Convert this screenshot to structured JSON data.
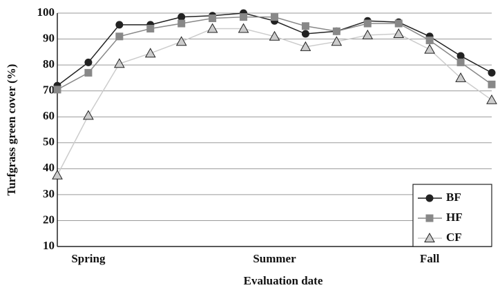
{
  "chart_data": {
    "type": "line",
    "y_label": "Turfgrass green cover (%)",
    "x_label": "Evaluation date",
    "categories": [
      null,
      "Spring",
      null,
      null,
      null,
      null,
      null,
      "Summer",
      null,
      null,
      null,
      null,
      "Fall",
      null,
      null
    ],
    "series": [
      {
        "name": "BF",
        "color": "#222222",
        "marker": "circle",
        "values": [
          72,
          81,
          95.5,
          95.5,
          98.5,
          99,
          100,
          97,
          92,
          93,
          97,
          96.5,
          91,
          83.5,
          77
        ]
      },
      {
        "name": "HF",
        "color": "#888888",
        "marker": "square",
        "values": [
          70.5,
          77,
          91,
          94,
          96,
          98,
          98.5,
          98.5,
          95,
          93,
          96,
          96,
          89.5,
          81,
          72.5
        ]
      },
      {
        "name": "CF",
        "color": "#cccccc",
        "marker": "triangle",
        "values": [
          37.5,
          60.5,
          80.5,
          84.5,
          89,
          94,
          94,
          91,
          87,
          89,
          91.5,
          92,
          86,
          75,
          66.5
        ]
      }
    ],
    "ylim": [
      10,
      100
    ],
    "yticks": [
      10,
      20,
      30,
      40,
      50,
      60,
      70,
      80,
      90,
      100
    ],
    "grid": true,
    "legend_position": "lower right"
  }
}
